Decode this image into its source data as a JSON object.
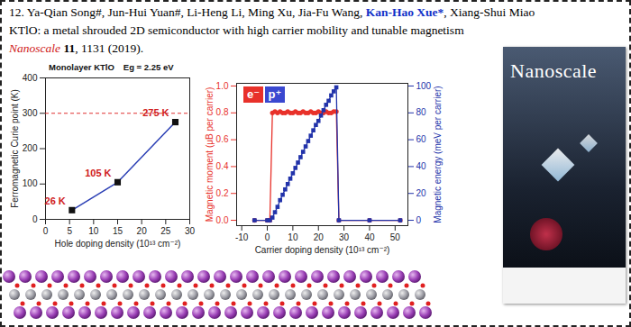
{
  "header": {
    "authors": "12. Ya-Qian Song#, Jun-Hui Yuan#, Li-Heng Li, Ming Xu, Jia-Fu Wang, ",
    "corresponding_author": "Kan-Hao Xue*",
    "authors_end": ", Xiang-Shui Miao",
    "title": "KTlO: a metal shrouded 2D semiconductor with high carrier mobility and tunable magnetism",
    "journal": "Nanoscale",
    "volume": "11",
    "citation_end": ", 1131 (2019)."
  },
  "chart_data": [
    {
      "type": "line",
      "title": "Monolayer KTlO",
      "subtitle": "Eg = 2.25 eV",
      "x_label": "Hole doping density (10¹³ cm⁻²)",
      "y_label": "Ferromagnetic Curie point (K)",
      "x": [
        5.5,
        15,
        27
      ],
      "series": [
        {
          "color": "#2b3fb5",
          "marker": "square",
          "line_style": "solid",
          "values": [
            26,
            105,
            275
          ],
          "value_labels": [
            "26 K",
            "105 K",
            "275 K"
          ]
        }
      ],
      "data_labels": true,
      "reference_y": 300,
      "reference_color": "#e03030",
      "xlim": [
        0,
        30
      ],
      "xticks": [
        0,
        5,
        10,
        15,
        20,
        25,
        30
      ],
      "ylim": [
        0,
        400
      ],
      "yticks": [
        0,
        100,
        200,
        300,
        400
      ]
    },
    {
      "type": "line",
      "x_label": "Carrier doping density (10¹³ cm⁻²)",
      "y_label": "Magnetic moment (μB per carrier)",
      "y2_label": "Magnetic energy (meV per carrier)",
      "annotations": [
        {
          "text": "e⁻",
          "color": "#e8312a"
        },
        {
          "text": "p⁺",
          "color": "#3a48d0"
        }
      ],
      "x": [
        -5,
        0,
        1,
        2,
        3,
        4,
        5,
        6,
        7,
        8,
        9,
        10,
        11,
        12,
        13,
        14,
        15,
        16,
        17,
        18,
        19,
        20,
        21,
        22,
        23,
        24,
        25,
        26,
        27,
        28,
        40,
        52
      ],
      "series": [
        {
          "color": "#e8312a",
          "marker": "circle",
          "line_style": "solid",
          "values": [
            0,
            0,
            0,
            0.8,
            0.81,
            0.8,
            0.81,
            0.8,
            0.8,
            0.81,
            0.8,
            0.8,
            0.81,
            0.8,
            0.8,
            0.81,
            0.8,
            0.8,
            0.81,
            0.8,
            0.8,
            0.81,
            0.8,
            0.8,
            0.81,
            0.8,
            0.8,
            0.81,
            0.81,
            0,
            0,
            0
          ]
        },
        {
          "color": "#2233aa",
          "marker": "square",
          "line_style": "solid",
          "axis": "y2",
          "values": [
            0,
            0,
            0,
            2,
            6,
            10,
            15,
            19,
            23,
            27,
            31,
            35,
            39,
            43,
            47,
            51,
            55,
            59,
            63,
            67,
            71,
            74,
            78,
            82,
            86,
            89,
            93,
            96,
            99,
            0,
            0,
            0
          ]
        }
      ],
      "xlim": [
        -12,
        55
      ],
      "xticks": [
        -10,
        0,
        10,
        20,
        30,
        40,
        50
      ],
      "ylim": [
        -0.04,
        1.02
      ],
      "yticks": [
        {
          "value": 0,
          "label": "0.0"
        },
        0.2,
        0.4,
        0.6,
        0.8,
        {
          "value": 1,
          "label": "1.0"
        }
      ],
      "y2lim": [
        -4,
        102
      ],
      "y2ticks": [
        0,
        20,
        40,
        60,
        80,
        100
      ]
    }
  ],
  "cover": {
    "title": "Nanoscale"
  }
}
